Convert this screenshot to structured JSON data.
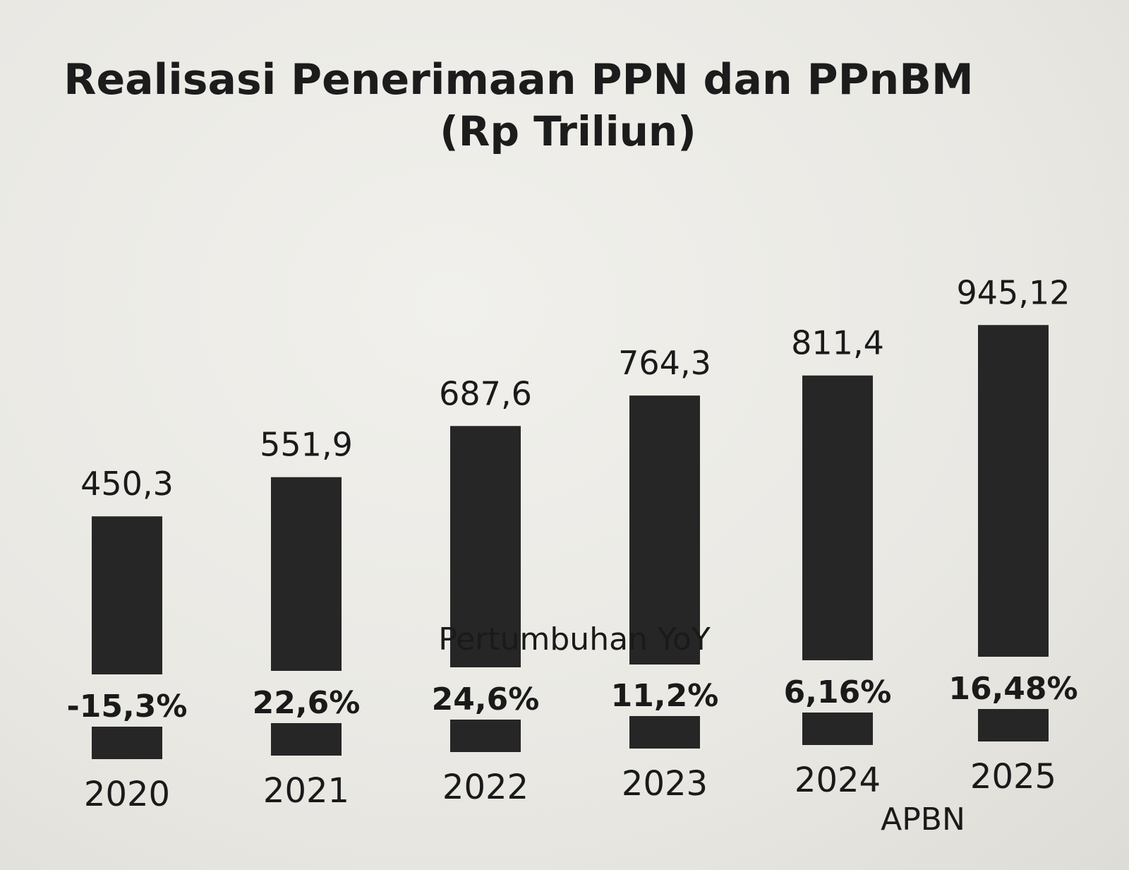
{
  "colors": {
    "bar": "#262626",
    "background": "#ecebe7",
    "text": "#1a1a1a"
  },
  "chart_data": {
    "type": "bar",
    "title": "Realisasi Penerimaan PPN dan PPnBM",
    "subtitle": "(Rp Triliun)",
    "categories": [
      "2020",
      "2021",
      "2022",
      "2023",
      "2024",
      "2025"
    ],
    "values": [
      450.3,
      551.9,
      687.6,
      764.3,
      811.4,
      945.12
    ],
    "value_labels": [
      "450,3",
      "551,9",
      "687,6",
      "764,3",
      "811,4",
      "945,12"
    ],
    "growth": [
      -15.3,
      22.6,
      24.6,
      11.2,
      6.16,
      16.48
    ],
    "growth_labels": [
      "-15,3%",
      "22,6%",
      "24,6%",
      "11,2%",
      "6,16%",
      "16,48%"
    ],
    "growth_legend": "Pertumbuhan YoY",
    "year_note": "APBN",
    "year_note_category": "2025",
    "xlabel": "",
    "ylabel": "",
    "grid": false
  }
}
